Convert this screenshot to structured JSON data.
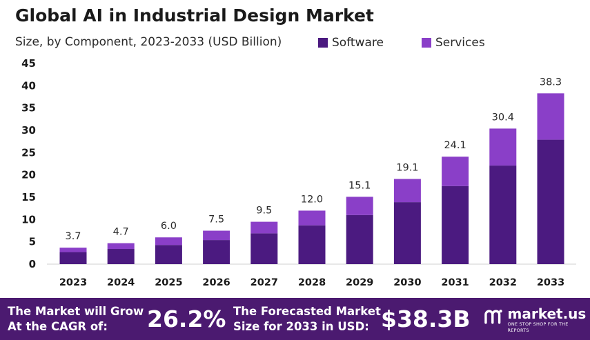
{
  "chart_data": {
    "type": "bar",
    "stacked": true,
    "title": "Global AI in Industrial Design Market",
    "subtitle": "Size, by Component, 2023-2033 (USD Billion)",
    "categories": [
      "2023",
      "2024",
      "2025",
      "2026",
      "2027",
      "2028",
      "2029",
      "2030",
      "2031",
      "2032",
      "2033"
    ],
    "series": [
      {
        "name": "Software",
        "color": "#4b1a80",
        "values": [
          2.7,
          3.4,
          4.3,
          5.4,
          6.9,
          8.7,
          11.0,
          13.9,
          17.5,
          22.1,
          27.9
        ]
      },
      {
        "name": "Services",
        "color": "#8a3fc8",
        "values": [
          1.0,
          1.3,
          1.7,
          2.1,
          2.6,
          3.3,
          4.1,
          5.2,
          6.6,
          8.3,
          10.4
        ]
      }
    ],
    "totals": [
      "3.7",
      "4.7",
      "6.0",
      "7.5",
      "9.5",
      "12.0",
      "15.1",
      "19.1",
      "24.1",
      "30.4",
      "38.3"
    ],
    "yticks": [
      0,
      5,
      10,
      15,
      20,
      25,
      30,
      35,
      40,
      45
    ],
    "ylim": [
      0,
      45
    ],
    "grid": false,
    "legend": "top-right"
  },
  "banner": {
    "cagr_text_1": "The Market will Grow",
    "cagr_text_2": "At the CAGR of:",
    "cagr_value": "26.2%",
    "forecast_text_1": "The Forecasted Market",
    "forecast_text_2": "Size for 2033 in USD:",
    "forecast_value": "$38.3B",
    "logo_name": "market.us",
    "logo_tagline": "ONE STOP SHOP FOR THE REPORTS"
  }
}
